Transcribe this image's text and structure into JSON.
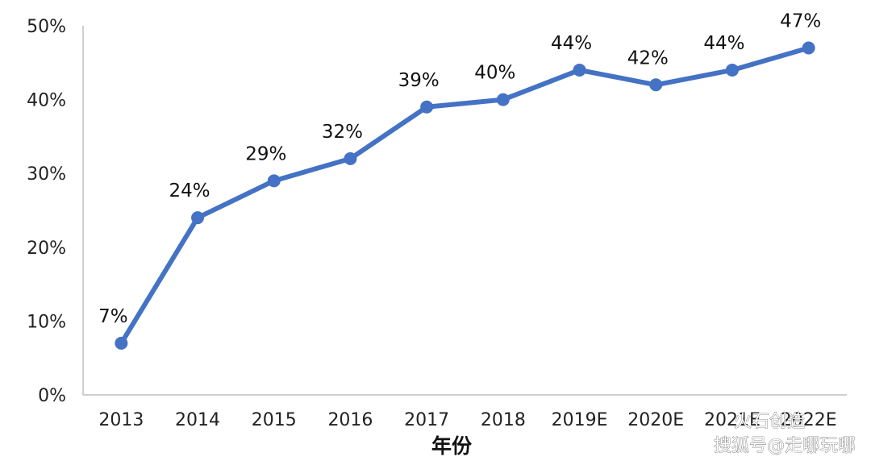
{
  "chart_data": {
    "type": "line",
    "title": "",
    "xlabel": "年份",
    "ylabel": "",
    "categories": [
      "2013",
      "2014",
      "2015",
      "2016",
      "2017",
      "2018",
      "2019E",
      "2020E",
      "2021E",
      "2022E"
    ],
    "series": [
      {
        "values": [
          7,
          24,
          29,
          32,
          39,
          40,
          44,
          42,
          44,
          47
        ],
        "labels": [
          "7%",
          "24%",
          "29%",
          "32%",
          "39%",
          "40%",
          "44%",
          "42%",
          "44%",
          "47%"
        ]
      }
    ],
    "yticks": [
      "0%",
      "10%",
      "20%",
      "30%",
      "40%",
      "50%"
    ],
    "ylim": [
      0,
      50
    ],
    "grid": false,
    "legend": "none",
    "color": "#4472C4"
  },
  "watermark": {
    "brand": "火石创造",
    "source": "搜狐号@走哪玩哪"
  }
}
